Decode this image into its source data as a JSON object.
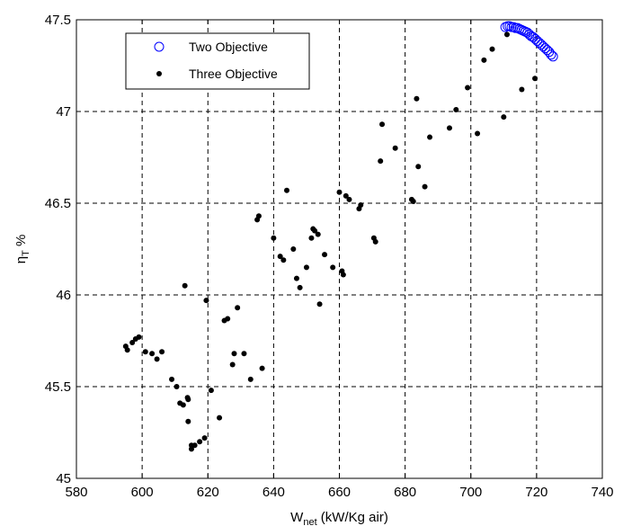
{
  "chart_data": {
    "type": "scatter",
    "title": "",
    "xlabel": {
      "main": "W",
      "sub": "net",
      "rest": " (kW/Kg air)"
    },
    "ylabel": {
      "main": "η",
      "sub": "T",
      "rest": "  %"
    },
    "xlim": [
      580,
      740
    ],
    "ylim": [
      45,
      47.5
    ],
    "xticks": [
      "580",
      "600",
      "620",
      "640",
      "660",
      "680",
      "700",
      "720",
      "740"
    ],
    "yticks": [
      "45",
      "45.5",
      "46",
      "46.5",
      "47",
      "47.5"
    ],
    "grid": true,
    "grid_style": "dashed",
    "legend_position": "top-left",
    "series": [
      {
        "name": "Two Objective",
        "marker": "open-circle",
        "color": "#0000ff",
        "points": [
          [
            710.5,
            47.46
          ],
          [
            711.2,
            47.465
          ],
          [
            711.8,
            47.465
          ],
          [
            712.4,
            47.46
          ],
          [
            713.0,
            47.46
          ],
          [
            713.6,
            47.455
          ],
          [
            714.2,
            47.455
          ],
          [
            714.8,
            47.45
          ],
          [
            715.4,
            47.445
          ],
          [
            716.0,
            47.44
          ],
          [
            716.6,
            47.435
          ],
          [
            717.2,
            47.43
          ],
          [
            717.8,
            47.42
          ],
          [
            718.4,
            47.41
          ],
          [
            719.0,
            47.405
          ],
          [
            719.6,
            47.395
          ],
          [
            720.2,
            47.385
          ],
          [
            720.8,
            47.375
          ],
          [
            721.4,
            47.365
          ],
          [
            722.0,
            47.355
          ],
          [
            722.6,
            47.345
          ],
          [
            723.2,
            47.335
          ],
          [
            723.8,
            47.325
          ],
          [
            724.4,
            47.31
          ],
          [
            725.0,
            47.3
          ]
        ]
      },
      {
        "name": "Three Objective",
        "marker": "dot",
        "color": "#000000",
        "points": [
          [
            595,
            45.72
          ],
          [
            595.5,
            45.7
          ],
          [
            597,
            45.74
          ],
          [
            598,
            45.76
          ],
          [
            599,
            45.77
          ],
          [
            601,
            45.69
          ],
          [
            603,
            45.68
          ],
          [
            604.5,
            45.65
          ],
          [
            606,
            45.69
          ],
          [
            609,
            45.54
          ],
          [
            610.5,
            45.5
          ],
          [
            611.5,
            45.41
          ],
          [
            612.5,
            45.4
          ],
          [
            613,
            46.05
          ],
          [
            613.8,
            45.44
          ],
          [
            614,
            45.43
          ],
          [
            614,
            45.31
          ],
          [
            615,
            45.16
          ],
          [
            615,
            45.18
          ],
          [
            616,
            45.18
          ],
          [
            617.5,
            45.2
          ],
          [
            619,
            45.22
          ],
          [
            619.5,
            45.97
          ],
          [
            621,
            45.48
          ],
          [
            623.5,
            45.33
          ],
          [
            625,
            45.86
          ],
          [
            626,
            45.87
          ],
          [
            627.5,
            45.62
          ],
          [
            628,
            45.68
          ],
          [
            629,
            45.93
          ],
          [
            631,
            45.68
          ],
          [
            633,
            45.54
          ],
          [
            635,
            46.41
          ],
          [
            635.5,
            46.43
          ],
          [
            636.5,
            45.6
          ],
          [
            640,
            46.31
          ],
          [
            642,
            46.21
          ],
          [
            643,
            46.19
          ],
          [
            644,
            46.57
          ],
          [
            646,
            46.25
          ],
          [
            647,
            46.09
          ],
          [
            648,
            46.04
          ],
          [
            650,
            46.15
          ],
          [
            651.5,
            46.31
          ],
          [
            652,
            46.36
          ],
          [
            652.5,
            46.35
          ],
          [
            653.5,
            46.33
          ],
          [
            654,
            45.95
          ],
          [
            655.5,
            46.22
          ],
          [
            658,
            46.15
          ],
          [
            660,
            46.56
          ],
          [
            660.8,
            46.13
          ],
          [
            661.2,
            46.11
          ],
          [
            662,
            46.54
          ],
          [
            663,
            46.52
          ],
          [
            666,
            46.47
          ],
          [
            666.5,
            46.49
          ],
          [
            670.5,
            46.31
          ],
          [
            671,
            46.29
          ],
          [
            672.5,
            46.73
          ],
          [
            673,
            46.93
          ],
          [
            677,
            46.8
          ],
          [
            682,
            46.52
          ],
          [
            682.5,
            46.51
          ],
          [
            683.5,
            47.07
          ],
          [
            684,
            46.7
          ],
          [
            686,
            46.59
          ],
          [
            687.5,
            46.86
          ],
          [
            693.5,
            46.91
          ],
          [
            695.5,
            47.01
          ],
          [
            699,
            47.13
          ],
          [
            702,
            46.88
          ],
          [
            704,
            47.28
          ],
          [
            706.5,
            47.34
          ],
          [
            710,
            46.97
          ],
          [
            711,
            47.42
          ],
          [
            715.5,
            47.12
          ],
          [
            719.5,
            47.18
          ]
        ]
      }
    ]
  }
}
